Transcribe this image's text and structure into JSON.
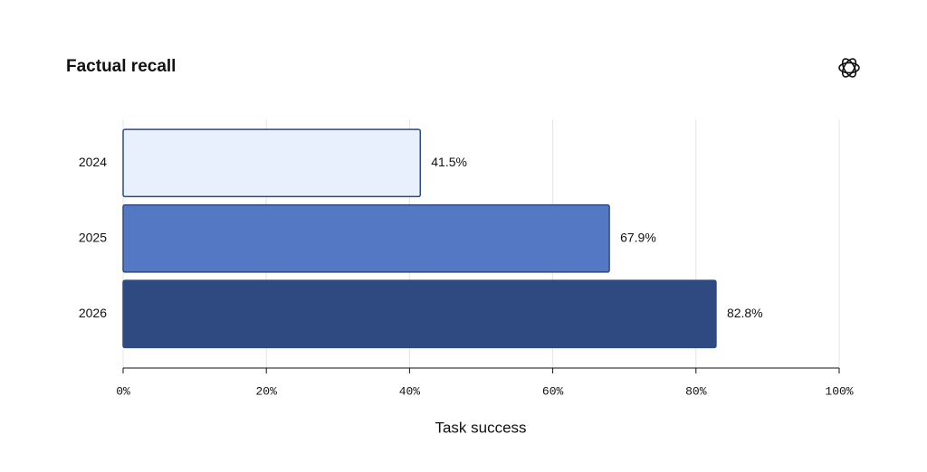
{
  "chart_data": {
    "type": "bar",
    "orientation": "horizontal",
    "title": "Factual recall",
    "categories": [
      "2024",
      "2025",
      "2026"
    ],
    "values": [
      41.5,
      67.9,
      82.8
    ],
    "value_labels": [
      "41.5%",
      "67.9%",
      "82.8%"
    ],
    "colors": [
      "#e8f0fd",
      "#5478c4",
      "#2e4a80"
    ],
    "edge_color": "#2e4a82",
    "x_label": "Task success",
    "xlim": [
      0,
      100
    ],
    "xticks": [
      {
        "value": 0,
        "label": "0%"
      },
      {
        "value": 20,
        "label": "20%"
      },
      {
        "value": 40,
        "label": "40%"
      },
      {
        "value": 60,
        "label": "60%"
      },
      {
        "value": 80,
        "label": "80%"
      },
      {
        "value": 100,
        "label": "100%"
      }
    ],
    "grid": true
  }
}
